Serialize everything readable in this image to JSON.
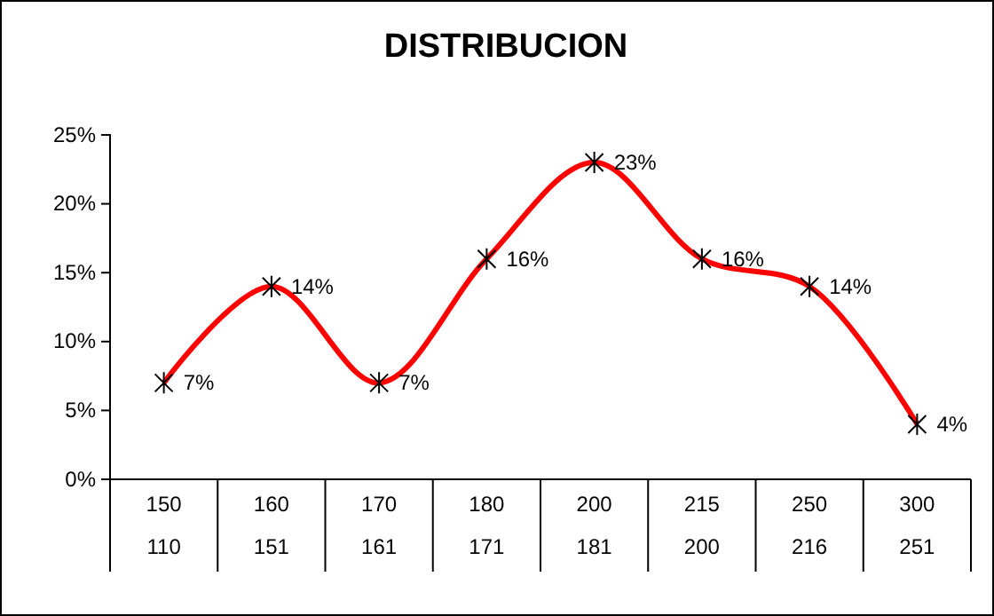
{
  "chart_data": {
    "type": "line",
    "title": "DISTRIBUCION",
    "categories": [
      "150\n110",
      "160\n151",
      "170\n161",
      "180\n171",
      "200\n181",
      "215\n200",
      "250\n216",
      "300\n251"
    ],
    "series": [
      {
        "color": "#ff0000",
        "values": [
          7,
          14,
          7,
          16,
          23,
          16,
          14,
          4
        ],
        "value_labels": [
          "7%",
          "14%",
          "7%",
          "16%",
          "23%",
          "16%",
          "14%",
          "4%"
        ]
      }
    ],
    "ylim": [
      0,
      25
    ],
    "yticks": [
      {
        "value": 0,
        "label": "0%"
      },
      {
        "value": 5,
        "label": "5%"
      },
      {
        "value": 10,
        "label": "10%"
      },
      {
        "value": 15,
        "label": "15%"
      },
      {
        "value": 20,
        "label": "20%"
      },
      {
        "value": 25,
        "label": "25%"
      }
    ],
    "grid": false,
    "marker": "cross",
    "line_style": "solid"
  }
}
